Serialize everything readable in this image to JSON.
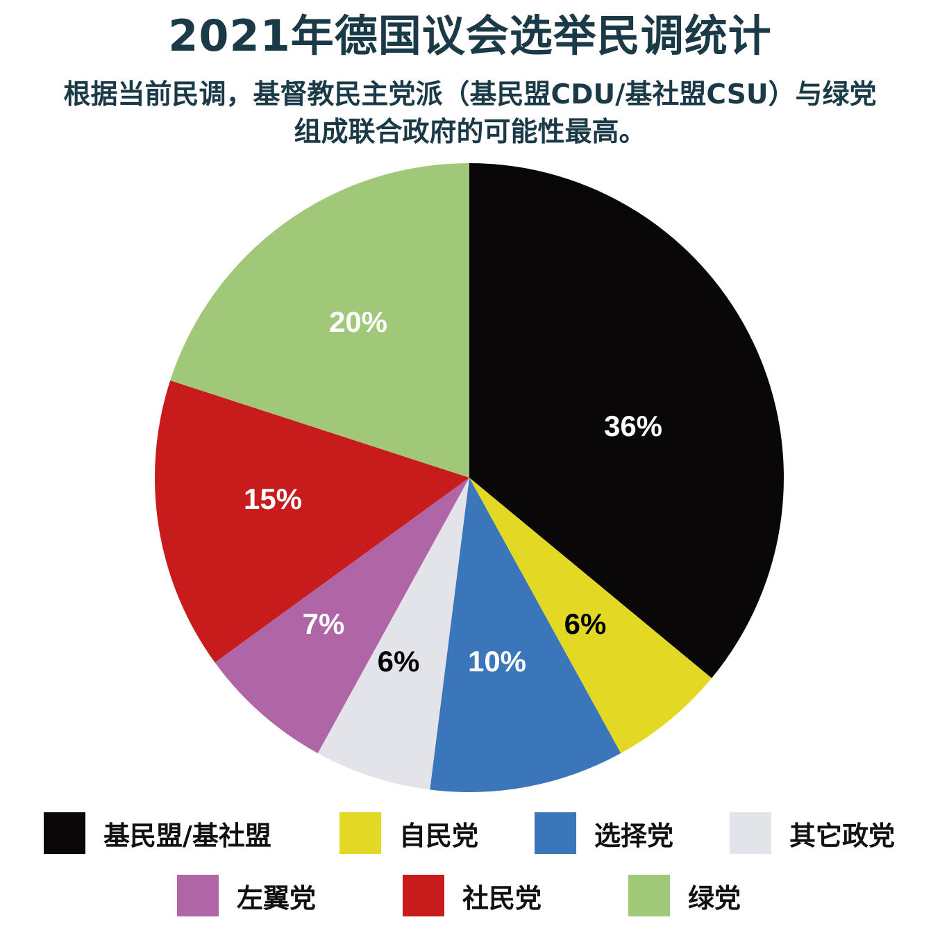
{
  "header": {
    "title": "2021年德国议会选举民调统计",
    "subtitle_line1": "根据当前民调，基督教民主党派（基民盟CDU/基社盟CSU）与绿党",
    "subtitle_line2": "组成联合政府的可能性最高。"
  },
  "chart_data": {
    "type": "pie",
    "title": "2021年德国议会选举民调统计",
    "subtitle": "根据当前民调，基督教民主党派（基民盟CDU/基社盟CSU）与绿党组成联合政府的可能性最高。",
    "start_angle": "12 o'clock",
    "direction": "clockwise",
    "unit": "%",
    "categories": [
      "基民盟/基社盟",
      "自民党",
      "选择党",
      "其它政党",
      "左翼党",
      "社民党",
      "绿党"
    ],
    "values": [
      36,
      6,
      10,
      6,
      7,
      15,
      20
    ],
    "labels": [
      "36%",
      "6%",
      "10%",
      "6%",
      "7%",
      "15%",
      "20%"
    ],
    "colors": [
      "#0a0708",
      "#e3d824",
      "#3b76bb",
      "#e2e4ea",
      "#b066a6",
      "#c81b1b",
      "#a0c878"
    ],
    "label_colors": [
      "#ffffff",
      "#000000",
      "#ffffff",
      "#000000",
      "#ffffff",
      "#ffffff",
      "#ffffff"
    ],
    "legend_position": "bottom"
  },
  "legend": {
    "items": [
      {
        "label": "基民盟/基社盟",
        "color": "#0a0708"
      },
      {
        "label": "自民党",
        "color": "#e3d824"
      },
      {
        "label": "选择党",
        "color": "#3b76bb"
      },
      {
        "label": "其它政党",
        "color": "#e2e4ea"
      },
      {
        "label": "左翼党",
        "color": "#b066a6"
      },
      {
        "label": "社民党",
        "color": "#c81b1b"
      },
      {
        "label": "绿党",
        "color": "#a0c878"
      }
    ]
  }
}
